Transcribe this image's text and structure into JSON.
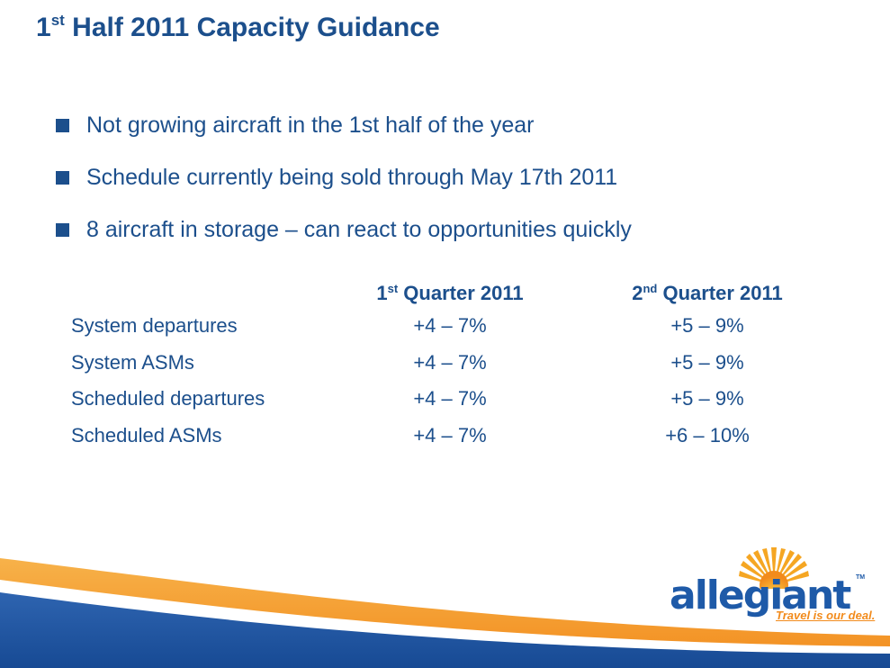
{
  "title": {
    "prefix": "1",
    "sup": "st",
    "rest": " Half 2011 Capacity Guidance"
  },
  "bullets": [
    "Not growing aircraft in the 1st half of the year",
    "Schedule currently being sold through May 17th 2011",
    "8 aircraft in storage – can react to opportunities quickly"
  ],
  "table": {
    "headers": [
      {
        "prefix": "1",
        "sup": "st",
        "rest": " Quarter 2011"
      },
      {
        "prefix": "2",
        "sup": "nd",
        "rest": " Quarter 2011"
      }
    ],
    "rows": [
      {
        "label": "System departures",
        "q1": "+4 – 7%",
        "q2": "+5 – 9%"
      },
      {
        "label": "System ASMs",
        "q1": "+4 – 7%",
        "q2": "+5 – 9%"
      },
      {
        "label": "Scheduled departures",
        "q1": "+4 – 7%",
        "q2": "+5 – 9%"
      },
      {
        "label": "Scheduled ASMs",
        "q1": "+4 – 7%",
        "q2": "+6 – 10%"
      }
    ]
  },
  "logo": {
    "word": "allegiant",
    "tm": "TM",
    "tagline": "Travel is our deal."
  },
  "colors": {
    "text": "#1c4f8c",
    "brand_blue": "#1e5aa8",
    "brand_orange": "#f28b1c"
  },
  "icons": {
    "bullet": "square-bullet-icon",
    "logo_sun": "sun-icon"
  }
}
